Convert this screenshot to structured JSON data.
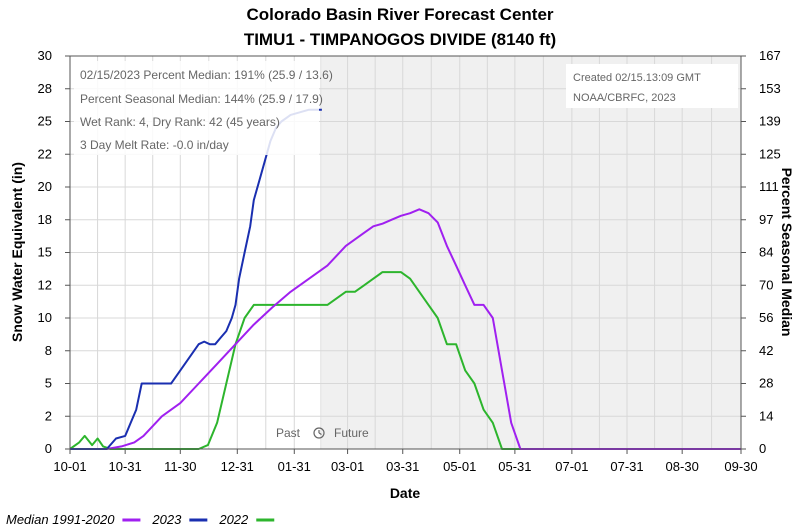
{
  "chart_data": {
    "type": "line",
    "title": "Colorado Basin River Forecast Center",
    "subtitle": "TIMU1 - TIMPANOGOS DIVIDE (8140 ft)",
    "xlabel": "Date",
    "ylabel": "Snow Water Equivalent (in)",
    "y2label": "Percent Seasonal Median",
    "ylim": [
      0,
      30
    ],
    "y2lim": [
      0,
      167
    ],
    "x_tick_labels": [
      "10-01",
      "10-31",
      "11-30",
      "12-31",
      "01-31",
      "03-01",
      "03-31",
      "05-01",
      "05-31",
      "07-01",
      "07-31",
      "08-30",
      "09-30"
    ],
    "y_tick_labels": [
      "0",
      "2",
      "5",
      "8",
      "10",
      "12",
      "15",
      "18",
      "20",
      "22",
      "25",
      "28",
      "30"
    ],
    "y2_tick_labels": [
      "0",
      "14",
      "28",
      "42",
      "56",
      "70",
      "84",
      "97",
      "111",
      "125",
      "139",
      "153",
      "167"
    ],
    "grid": true,
    "shaded_future_region": "02-15 to 09-30",
    "past_label": "Past",
    "future_label": "Future",
    "legend": {
      "placement": "bottom-left",
      "entries": [
        {
          "label": "Median 1991-2020",
          "color": "#a020f0"
        },
        {
          "label": "2023",
          "color": "#1a2fb0"
        },
        {
          "label": "2022",
          "color": "#2db52d"
        }
      ]
    },
    "info_box": [
      "02/15/2023 Percent Median: 191% (25.9 / 13.6)",
      "Percent Seasonal Median: 144% (25.9 / 17.9)",
      "Wet Rank: 4, Dry Rank: 42  (45 years)",
      "3 Day Melt Rate: -0.0 in/day"
    ],
    "credit": [
      "Created 02/15.13:09 GMT",
      "NOAA/CBRFC, 2023"
    ],
    "series": [
      {
        "name": "Median 1991-2020",
        "color": "#a020f0",
        "x": [
          0,
          20,
          28,
          35,
          40,
          50,
          60,
          70,
          80,
          90,
          100,
          110,
          120,
          130,
          140,
          150,
          160,
          165,
          170,
          175,
          180,
          185,
          190,
          195,
          200,
          205,
          210,
          215,
          220,
          225,
          230,
          235,
          240,
          245,
          250,
          260,
          270,
          365
        ],
        "y": [
          0,
          0,
          0.2,
          0.5,
          1,
          2.5,
          3.5,
          5,
          6.5,
          8,
          9.5,
          10.8,
          12,
          13,
          14,
          15.5,
          16.5,
          17,
          17.2,
          17.5,
          17.8,
          18,
          18.3,
          18,
          17.3,
          15.5,
          14,
          12.5,
          11,
          11,
          10,
          6,
          2,
          0,
          0,
          0,
          0,
          0
        ]
      },
      {
        "name": "2023",
        "color": "#1a2fb0",
        "x": [
          0,
          10,
          20,
          25,
          30,
          33,
          36,
          39,
          42,
          45,
          50,
          55,
          60,
          65,
          70,
          73,
          76,
          79,
          82,
          85,
          88,
          90,
          92,
          95,
          98,
          100,
          103,
          106,
          109,
          112,
          115,
          120,
          125,
          130,
          137
        ],
        "y": [
          0,
          0,
          0,
          0.8,
          1,
          2,
          3,
          5,
          5,
          5,
          5,
          5,
          6,
          7,
          8,
          8.2,
          8,
          8,
          8.5,
          9,
          10,
          11,
          13,
          15,
          17,
          19,
          20.5,
          22,
          23.5,
          24.5,
          25,
          25.5,
          25.7,
          25.9,
          25.9
        ]
      },
      {
        "name": "2022",
        "color": "#2db52d",
        "x": [
          0,
          5,
          8,
          12,
          15,
          18,
          22,
          30,
          40,
          50,
          60,
          70,
          75,
          80,
          85,
          90,
          95,
          100,
          110,
          120,
          130,
          140,
          150,
          155,
          160,
          165,
          170,
          175,
          180,
          185,
          190,
          195,
          200,
          205,
          210,
          215,
          220,
          225,
          230,
          235,
          240,
          365
        ],
        "y": [
          0,
          0.5,
          1,
          0.3,
          0.8,
          0.2,
          0,
          0,
          0,
          0,
          0,
          0,
          0.3,
          2,
          5,
          8,
          10,
          11,
          11,
          11,
          11,
          11,
          12,
          12,
          12.5,
          13,
          13.5,
          13.5,
          13.5,
          13,
          12,
          11,
          10,
          8,
          8,
          6,
          5,
          3,
          2,
          0,
          0,
          0
        ]
      }
    ]
  }
}
